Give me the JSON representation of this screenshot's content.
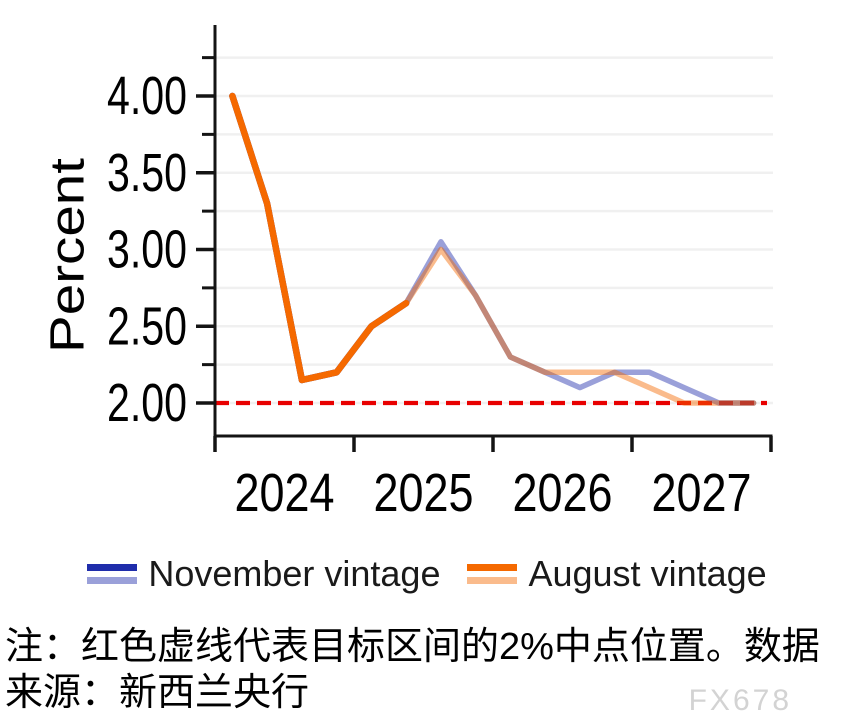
{
  "chart_data": {
    "type": "line",
    "title": "",
    "xlabel": "",
    "ylabel": "Percent",
    "x": [
      "2024Q1",
      "2024Q2",
      "2024Q3",
      "2024Q4",
      "2025Q1",
      "2025Q2",
      "2025Q3",
      "2025Q4",
      "2026Q1",
      "2026Q2",
      "2026Q3",
      "2026Q4",
      "2027Q1",
      "2027Q2",
      "2027Q3",
      "2027Q4"
    ],
    "x_year_labels": [
      "2024",
      "2025",
      "2026",
      "2027"
    ],
    "series": [
      {
        "name": "November vintage",
        "color": "#1f2dab",
        "values": [
          4.0,
          3.3,
          2.15,
          2.2,
          2.5,
          2.65,
          3.05,
          2.7,
          2.3,
          2.2,
          2.1,
          2.2,
          2.2,
          2.1,
          2.0,
          2.0
        ],
        "actual_through_index": 5
      },
      {
        "name": "August vintage",
        "color": "#f56900",
        "values": [
          4.0,
          3.3,
          2.15,
          2.2,
          2.5,
          2.65,
          3.0,
          2.7,
          2.3,
          2.2,
          2.2,
          2.2,
          2.1,
          2.0,
          2.0,
          2.0
        ],
        "actual_through_index": 5
      }
    ],
    "y_major_ticks": [
      4.0,
      3.5,
      3.0,
      2.5,
      2.0
    ],
    "y_tick_labels": [
      "4.00",
      "3.50",
      "3.00",
      "2.50",
      "2.00"
    ],
    "y_minor_ticks": [
      4.25,
      3.75,
      3.25,
      2.75,
      2.25
    ],
    "y_gridlines": [
      2.0,
      2.25,
      2.5,
      2.75,
      3.0,
      3.25,
      3.5,
      3.75,
      4.0,
      4.25
    ],
    "ylim": [
      1.78,
      4.46
    ],
    "grid": true,
    "legend_position": "bottom",
    "reference_line": {
      "value": 2.0,
      "color": "#e80000",
      "style": "dashed"
    },
    "forecast_opacity": 0.45
  },
  "note": {
    "line1": "注：红色虚线代表目标区间的2%中点位置。数据",
    "line2": "来源：新西兰央行"
  },
  "watermark": "FX678"
}
